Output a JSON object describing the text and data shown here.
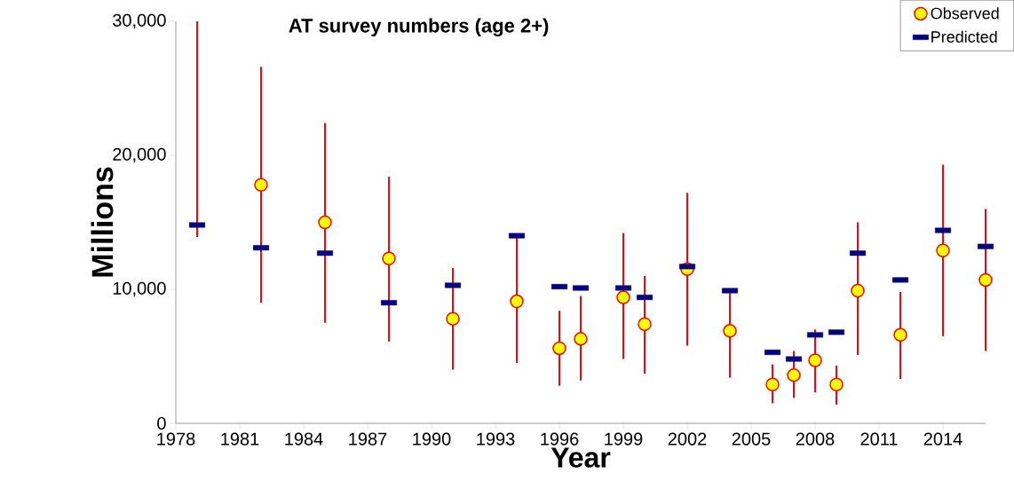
{
  "chart_data": {
    "type": "scatter",
    "title": "AT survey numbers (age 2+)",
    "xlabel": "Year",
    "ylabel": "Millions",
    "x": [
      1979,
      1982,
      1985,
      1988,
      1991,
      1994,
      1996,
      1997,
      1999,
      2000,
      2002,
      2004,
      2006,
      2007,
      2008,
      2009,
      2010,
      2012,
      2014,
      2016
    ],
    "series": [
      {
        "name": "Observed",
        "color": "#ffff00",
        "marker": "circle",
        "values": [
          null,
          17800,
          15000,
          12300,
          7800,
          9100,
          5600,
          6300,
          9400,
          7400,
          11500,
          6900,
          2900,
          3600,
          4700,
          2900,
          9900,
          6600,
          12900,
          10700
        ],
        "errors": [
          null,
          [
            9000,
            26600
          ],
          [
            7500,
            22400
          ],
          [
            6100,
            18400
          ],
          [
            4000,
            11600
          ],
          [
            4500,
            14000
          ],
          [
            2800,
            8400
          ],
          [
            3200,
            9500
          ],
          [
            4800,
            14200
          ],
          [
            3700,
            11000
          ],
          [
            5800,
            17200
          ],
          [
            3400,
            10000
          ],
          [
            1500,
            4400
          ],
          [
            1900,
            5400
          ],
          [
            2300,
            7000
          ],
          [
            1400,
            4300
          ],
          [
            5100,
            15000
          ],
          [
            3300,
            9800
          ],
          [
            6500,
            19300
          ],
          [
            5400,
            16000
          ]
        ]
      },
      {
        "name": "Predicted",
        "color": "#000080",
        "values": [
          14800,
          13100,
          12700,
          9000,
          10300,
          14000,
          10200,
          10100,
          10100,
          9400,
          11700,
          9900,
          5300,
          4800,
          6600,
          6800,
          12700,
          10700,
          14400,
          13200
        ]
      },
      {
        "type": "line",
        "color": "#ff0000",
        "x": [
          1979,
          1979
        ],
        "values": [
          13900,
          30000
        ]
      }
    ],
    "xlim": [
      1978,
      2016
    ],
    "ylim": [
      0,
      30000
    ],
    "xticks": [
      1978,
      1981,
      1984,
      1987,
      1990,
      1993,
      1996,
      1999,
      2002,
      2005,
      2008,
      2011,
      2014
    ],
    "yticks": [
      {
        "value": 0,
        "label": "0"
      },
      {
        "value": 10000,
        "label": "10,000"
      },
      {
        "value": 20000,
        "label": "20,000"
      },
      {
        "value": 30000,
        "label": "30,000"
      }
    ],
    "legend": "top right"
  }
}
